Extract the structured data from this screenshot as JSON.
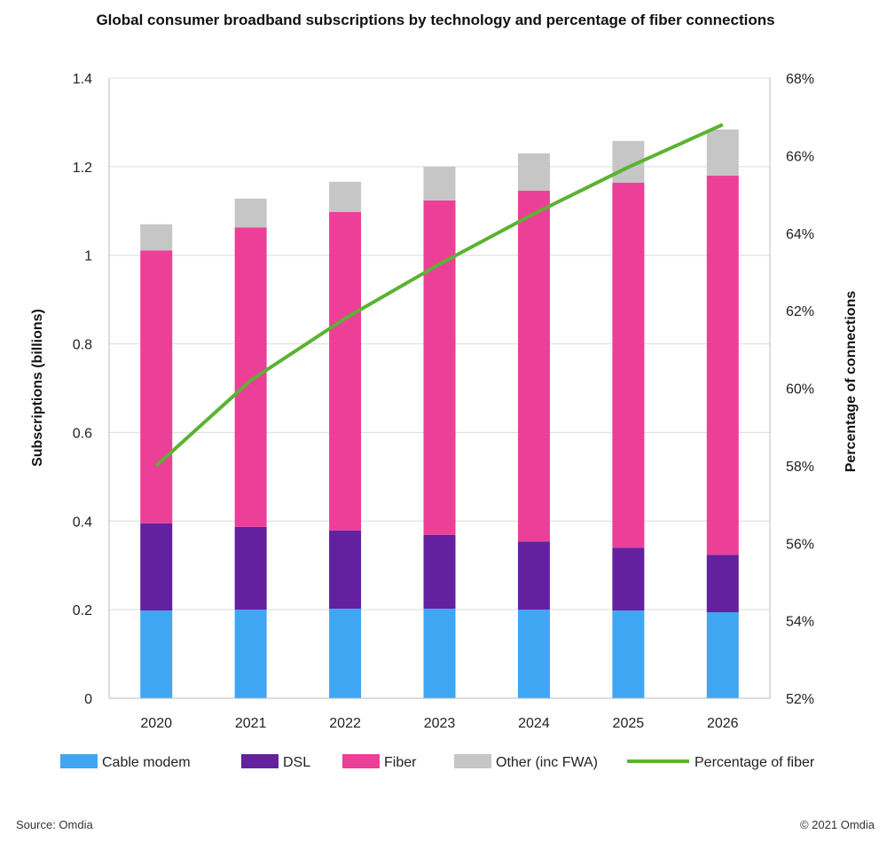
{
  "chart_data": {
    "type": "bar",
    "stacked": true,
    "title": "Global consumer broadband subscriptions by technology and percentage of fiber connections",
    "xlabel": "",
    "ylabel": "Subscriptions (billions)",
    "y2label": "Percentage of connections",
    "ylim": [
      0,
      1.4
    ],
    "y2lim": [
      52,
      68
    ],
    "yticks": [
      "0",
      "0.2",
      "0.4",
      "0.6",
      "0.8",
      "1",
      "1.2",
      "1.4"
    ],
    "y2ticks": [
      "52%",
      "54%",
      "56%",
      "58%",
      "60%",
      "62%",
      "64%",
      "66%",
      "68%"
    ],
    "grid": true,
    "legend_position": "bottom",
    "categories": [
      "2020",
      "2021",
      "2022",
      "2023",
      "2024",
      "2025",
      "2026"
    ],
    "series": [
      {
        "name": "Cable modem",
        "color": "#3fa6f4",
        "values": [
          0.198,
          0.2,
          0.202,
          0.202,
          0.2,
          0.198,
          0.194
        ]
      },
      {
        "name": "DSL",
        "color": "#6321a0",
        "values": [
          0.197,
          0.187,
          0.177,
          0.167,
          0.154,
          0.142,
          0.13
        ]
      },
      {
        "name": "Fiber",
        "color": "#ec3f98",
        "values": [
          0.616,
          0.676,
          0.719,
          0.755,
          0.792,
          0.824,
          0.856
        ]
      },
      {
        "name": "Other (inc FWA)",
        "color": "#c6c6c6",
        "values": [
          0.059,
          0.065,
          0.068,
          0.076,
          0.084,
          0.094,
          0.104
        ]
      }
    ],
    "line_series": {
      "name": "Percentage of fiber",
      "color": "#5ab332",
      "axis": "right",
      "values": [
        58.0,
        60.2,
        61.8,
        63.2,
        64.5,
        65.7,
        66.8
      ]
    }
  },
  "footer": {
    "source": "Source: Omdia",
    "copyright": "© 2021 Omdia"
  }
}
